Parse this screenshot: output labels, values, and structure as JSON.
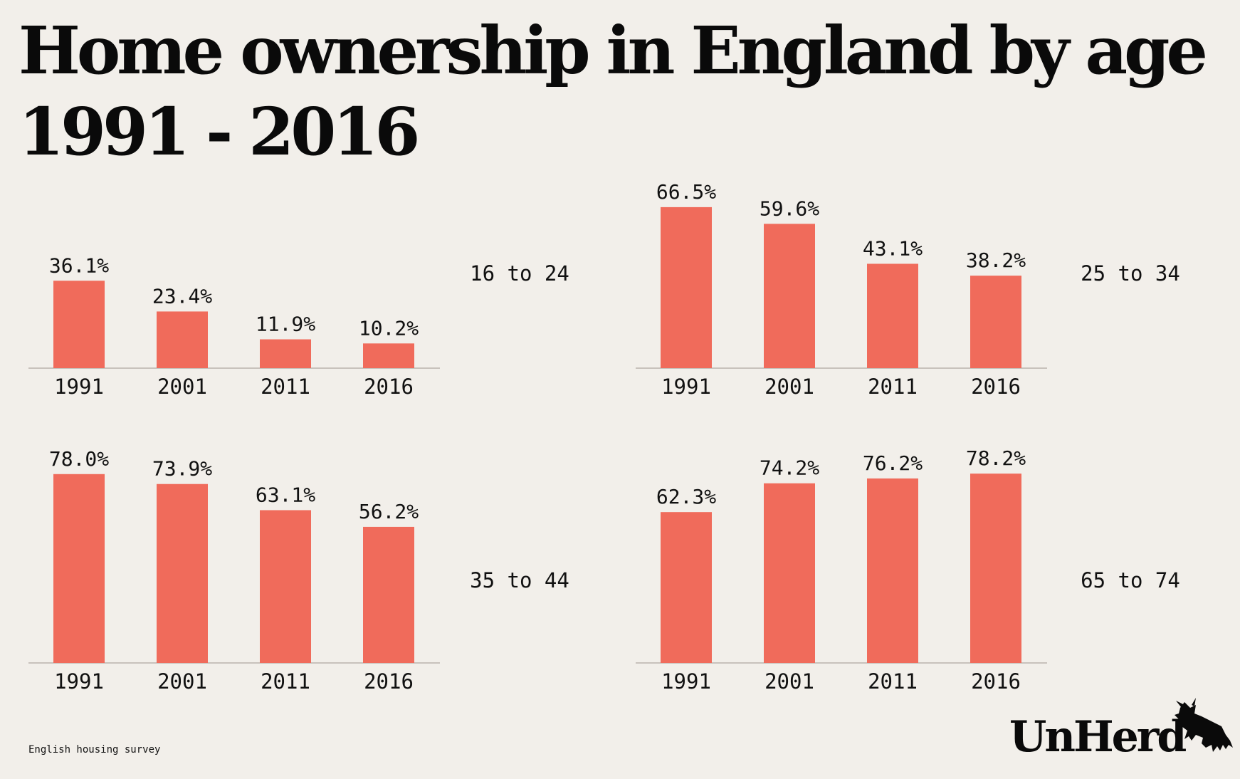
{
  "title": {
    "line1": "Home ownership in England by age",
    "line2": "1991 - 2016"
  },
  "colors": {
    "bar": "#f06b5b",
    "axis": "#b9b4ad",
    "text": "#111111",
    "background": "#f2efea"
  },
  "chart_data": [
    {
      "type": "bar",
      "group": "16 to 24",
      "categories": [
        "1991",
        "2001",
        "2011",
        "2016"
      ],
      "values": [
        36.1,
        23.4,
        11.9,
        10.2
      ],
      "value_labels": [
        "36.1%",
        "23.4%",
        "11.9%",
        "10.2%"
      ],
      "ylim": [
        0,
        80
      ]
    },
    {
      "type": "bar",
      "group": "25 to 34",
      "categories": [
        "1991",
        "2001",
        "2011",
        "2016"
      ],
      "values": [
        66.5,
        59.6,
        43.1,
        38.2
      ],
      "value_labels": [
        "66.5%",
        "59.6%",
        "43.1%",
        "38.2%"
      ],
      "ylim": [
        0,
        80
      ]
    },
    {
      "type": "bar",
      "group": "35 to 44",
      "categories": [
        "1991",
        "2001",
        "2011",
        "2016"
      ],
      "values": [
        78.0,
        73.9,
        63.1,
        56.2
      ],
      "value_labels": [
        "78.0%",
        "73.9%",
        "63.1%",
        "56.2%"
      ],
      "ylim": [
        0,
        80
      ]
    },
    {
      "type": "bar",
      "group": "65 to 74",
      "categories": [
        "1991",
        "2001",
        "2011",
        "2016"
      ],
      "values": [
        62.3,
        74.2,
        76.2,
        78.2
      ],
      "value_labels": [
        "62.3%",
        "74.2%",
        "76.2%",
        "78.2%"
      ],
      "ylim": [
        0,
        80
      ]
    }
  ],
  "source": "English housing survey",
  "brand": {
    "name": "UnHerd",
    "logo_icon": "bull-icon"
  }
}
